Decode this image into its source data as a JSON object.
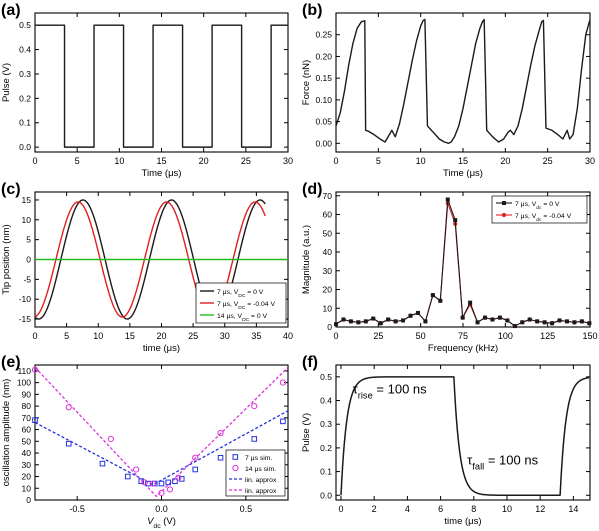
{
  "chart_data": [
    {
      "type": "line",
      "panel_label": "(a)",
      "xlabel": "Time (μs)",
      "ylabel": "Pulse (V)",
      "xlim": [
        0,
        30
      ],
      "ylim": [
        -0.02,
        0.55
      ],
      "xticks": [
        0,
        5,
        10,
        15,
        20,
        25,
        30
      ],
      "yticks": [
        0.0,
        0.1,
        0.2,
        0.3,
        0.4,
        0.5
      ],
      "ytick_labels": [
        "0.0",
        "0.1",
        "0.2",
        "0.3",
        "0.4",
        "0.5"
      ],
      "series": [
        {
          "color": "#1a1a1a",
          "x": [
            0,
            3.5,
            3.5,
            7,
            7,
            10.5,
            10.5,
            14,
            14,
            17.5,
            17.5,
            21,
            21,
            24.5,
            24.5,
            28,
            28,
            30
          ],
          "y": [
            0.5,
            0.5,
            0,
            0,
            0.5,
            0.5,
            0,
            0,
            0.5,
            0.5,
            0,
            0,
            0.5,
            0.5,
            0,
            0,
            0.5,
            0.5
          ]
        }
      ]
    },
    {
      "type": "line",
      "panel_label": "(b)",
      "xlabel": "Time (μs)",
      "ylabel": "Force (nN)",
      "xlim": [
        0,
        30
      ],
      "ylim": [
        -0.02,
        0.3
      ],
      "xticks": [
        0,
        5,
        10,
        15,
        20,
        25,
        30
      ],
      "yticks": [
        0.0,
        0.05,
        0.1,
        0.15,
        0.2,
        0.25
      ],
      "ytick_labels": [
        "0.00",
        "0.05",
        "0.10",
        "0.15",
        "0.20",
        "0.25"
      ],
      "series": [
        {
          "color": "#1a1a1a",
          "x": [
            0,
            0.5,
            1,
            1.5,
            2,
            2.5,
            3,
            3.4,
            3.5,
            3.8,
            4.5,
            5.2,
            5.8,
            6.3,
            6.6,
            7,
            7.5,
            8,
            8.5,
            9,
            9.5,
            10,
            10.3,
            10.5,
            10.8,
            11.5,
            12.2,
            12.8,
            13.3,
            13.6,
            14,
            14.5,
            15,
            15.5,
            16,
            16.5,
            17,
            17.3,
            17.5,
            17.8,
            18.5,
            19.2,
            19.8,
            20.3,
            20.6,
            21,
            21.5,
            22,
            22.5,
            23,
            23.5,
            24,
            24.3,
            24.5,
            24.8,
            25.5,
            26.2,
            26.8,
            27.3,
            27.6,
            28,
            28.5,
            29,
            29.5,
            30
          ],
          "y": [
            0.04,
            0.07,
            0.12,
            0.18,
            0.23,
            0.265,
            0.28,
            0.282,
            0.03,
            0.028,
            0.02,
            0.01,
            0.003,
            0.02,
            0.03,
            0.015,
            0.045,
            0.09,
            0.14,
            0.19,
            0.235,
            0.27,
            0.283,
            0.285,
            0.04,
            0.025,
            0.01,
            0.003,
            0.0,
            0.003,
            0.015,
            0.04,
            0.08,
            0.13,
            0.18,
            0.23,
            0.265,
            0.28,
            0.285,
            0.03,
            0.015,
            0.003,
            0.01,
            0.025,
            0.03,
            0.02,
            0.04,
            0.08,
            0.13,
            0.18,
            0.225,
            0.26,
            0.28,
            0.283,
            0.035,
            0.03,
            0.02,
            0.01,
            0.03,
            0.01,
            0.02,
            0.08,
            0.17,
            0.25,
            0.285
          ]
        }
      ]
    },
    {
      "type": "line",
      "panel_label": "(c)",
      "xlabel": "time (μs)",
      "ylabel": "Tip position (nm)",
      "xlim": [
        0,
        40
      ],
      "ylim": [
        -17,
        17
      ],
      "xticks": [
        0,
        5,
        10,
        15,
        20,
        25,
        30,
        35,
        40
      ],
      "yticks": [
        -15,
        -10,
        -5,
        0,
        5,
        10,
        15
      ],
      "ytick_labels": [
        "-15",
        "-10",
        "-5",
        "0",
        "5",
        "10",
        "15"
      ],
      "legend": [
        {
          "text": "7 μs, V",
          "sub": "DC",
          "tail": " = 0 V"
        },
        {
          "text": "7 μs, V",
          "sub": "DC",
          "tail": " = -0.04 V"
        },
        {
          "text": "14 μs, V",
          "sub": "DC",
          "tail": " = 0 V"
        }
      ],
      "legend_position": "bottom-right",
      "series": [
        {
          "color": "#1a1a1a",
          "amplitude": 15,
          "period_us": 14,
          "phase_deg": -105
        },
        {
          "color": "#e02020",
          "amplitude": 14.5,
          "period_us": 14,
          "phase_deg": -85
        },
        {
          "color": "#22bb22",
          "amplitude": 0,
          "period_us": 14,
          "phase_deg": 0
        }
      ]
    },
    {
      "type": "line",
      "panel_label": "(d)",
      "xlabel": "Frequency (kHz)",
      "ylabel": "Magnitude (a.u.)",
      "xlim": [
        0,
        150
      ],
      "ylim": [
        0,
        72
      ],
      "xticks": [
        0,
        25,
        50,
        75,
        100,
        125,
        150
      ],
      "yticks": [
        0,
        10,
        20,
        30,
        40,
        50,
        60,
        70
      ],
      "ytick_labels": [
        "0",
        "10",
        "20",
        "30",
        "40",
        "50",
        "60",
        "70"
      ],
      "legend": [
        {
          "text": "7 μs, V",
          "sub": "dc",
          "tail": " = 0 V"
        },
        {
          "text": "7 μs, V",
          "sub": "dc",
          "tail": " = -0.04 V"
        }
      ],
      "legend_position": "top-right",
      "series": [
        {
          "color": "#1a1a1a",
          "marker": "square",
          "x": [
            0,
            4.4,
            8.8,
            13.2,
            17.6,
            22,
            26.4,
            30.8,
            35.2,
            39.6,
            44,
            48.4,
            52.8,
            57.2,
            61.6,
            66,
            70.4,
            74.8,
            79.2,
            83.6,
            88,
            92.4,
            96.8,
            101.2,
            105.6,
            110,
            114.4,
            118.8,
            123.2,
            127.6,
            132,
            136.4,
            140.8,
            145.2,
            149.6
          ],
          "y": [
            1.5,
            4,
            3,
            2.5,
            3,
            4.5,
            2,
            4,
            3,
            3.5,
            6,
            7.5,
            3,
            17,
            14,
            68,
            57,
            5,
            13,
            2.5,
            5,
            4,
            5,
            3.5,
            0.5,
            2.5,
            4,
            3,
            2.5,
            2,
            3.5,
            3,
            2.5,
            3,
            2
          ]
        },
        {
          "color": "#e02020",
          "marker": "circle",
          "x": [
            0,
            4.4,
            8.8,
            13.2,
            17.6,
            22,
            26.4,
            30.8,
            35.2,
            39.6,
            44,
            48.4,
            52.8,
            57.2,
            61.6,
            66,
            70.4,
            74.8,
            79.2,
            83.6,
            88,
            92.4,
            96.8,
            101.2,
            105.6,
            110,
            114.4,
            118.8,
            123.2,
            127.6,
            132,
            136.4,
            140.8,
            145.2,
            149.6
          ],
          "y": [
            1.5,
            4,
            3,
            2.5,
            3,
            4.5,
            2,
            4,
            3,
            3.5,
            6,
            7.5,
            3,
            17,
            14,
            66,
            55,
            5,
            12,
            2.5,
            5,
            4,
            5,
            3.5,
            0.5,
            2.5,
            4,
            3,
            2.5,
            2,
            3.5,
            3,
            2.5,
            3,
            2
          ]
        }
      ]
    },
    {
      "type": "scatter",
      "panel_label": "(e)",
      "xlabel": "V",
      "xlabel_sub": "dc",
      "xlabel_tail": " (V)",
      "ylabel": "oscillation amplitude (nm)",
      "xlim": [
        -0.75,
        0.75
      ],
      "ylim": [
        0,
        115
      ],
      "xticks": [
        -0.5,
        0.0,
        0.5
      ],
      "xtick_labels": [
        "-0.5",
        "0.0",
        "0.5"
      ],
      "yticks": [
        0,
        10,
        20,
        30,
        40,
        50,
        60,
        70,
        80,
        90,
        100,
        110
      ],
      "ytick_labels": [
        "0",
        "10",
        "20",
        "30",
        "40",
        "50",
        "60",
        "70",
        "80",
        "90",
        "100",
        "110"
      ],
      "legend": [
        "7 μs sim.",
        "14 μs sim.",
        "lin. approx",
        "lin. approx"
      ],
      "legend_position": "bottom-right",
      "series": [
        {
          "color": "#2233dd",
          "marker": "square",
          "x": [
            -0.75,
            -0.55,
            -0.35,
            -0.2,
            -0.12,
            -0.08,
            -0.04,
            0.0,
            0.04,
            0.08,
            0.12,
            0.2,
            0.35,
            0.55,
            0.72
          ],
          "y": [
            68,
            48,
            31,
            20,
            16,
            14,
            14,
            14,
            15,
            16,
            18,
            26,
            36,
            52,
            67
          ]
        },
        {
          "color": "#dd33dd",
          "marker": "circle",
          "x": [
            -0.75,
            -0.55,
            -0.3,
            -0.15,
            -0.1,
            -0.05,
            0.0,
            0.05,
            0.1,
            0.2,
            0.35,
            0.55,
            0.72
          ],
          "y": [
            111,
            79,
            52,
            26,
            15,
            14,
            6,
            9,
            19,
            36,
            57,
            80,
            100
          ]
        },
        {
          "color": "#2233dd",
          "dashed": true,
          "line": true,
          "x": [
            -0.75,
            -0.05,
            0.75
          ],
          "y": [
            66,
            13,
            76
          ]
        },
        {
          "color": "#dd33dd",
          "dashed": true,
          "line": true,
          "x": [
            -0.75,
            -0.03,
            0.75
          ],
          "y": [
            113,
            3,
            113
          ]
        }
      ]
    },
    {
      "type": "line",
      "panel_label": "(f)",
      "xlabel": "time (μs)",
      "ylabel": "Pulse (V)",
      "xlim": [
        -0.3,
        15
      ],
      "ylim": [
        -0.02,
        0.55
      ],
      "xticks": [
        0,
        2,
        4,
        6,
        8,
        10,
        12,
        14
      ],
      "yticks": [
        0.0,
        0.1,
        0.2,
        0.3,
        0.4,
        0.5
      ],
      "ytick_labels": [
        "0.0",
        "0.1",
        "0.2",
        "0.3",
        "0.4",
        "0.5"
      ],
      "annotations": [
        {
          "symbol": "τ",
          "sub": "rise",
          "tail": " = 100 ns"
        },
        {
          "symbol": "τ",
          "sub": "fall",
          "tail": " = 100 ns"
        }
      ],
      "tau_rise_us": 0.1,
      "tau_fall_us": 0.1,
      "series": [
        {
          "color": "#1a1a1a",
          "edges": [
            0,
            6.8,
            13.2
          ],
          "high": 0.5,
          "low": 0.0
        }
      ]
    }
  ]
}
